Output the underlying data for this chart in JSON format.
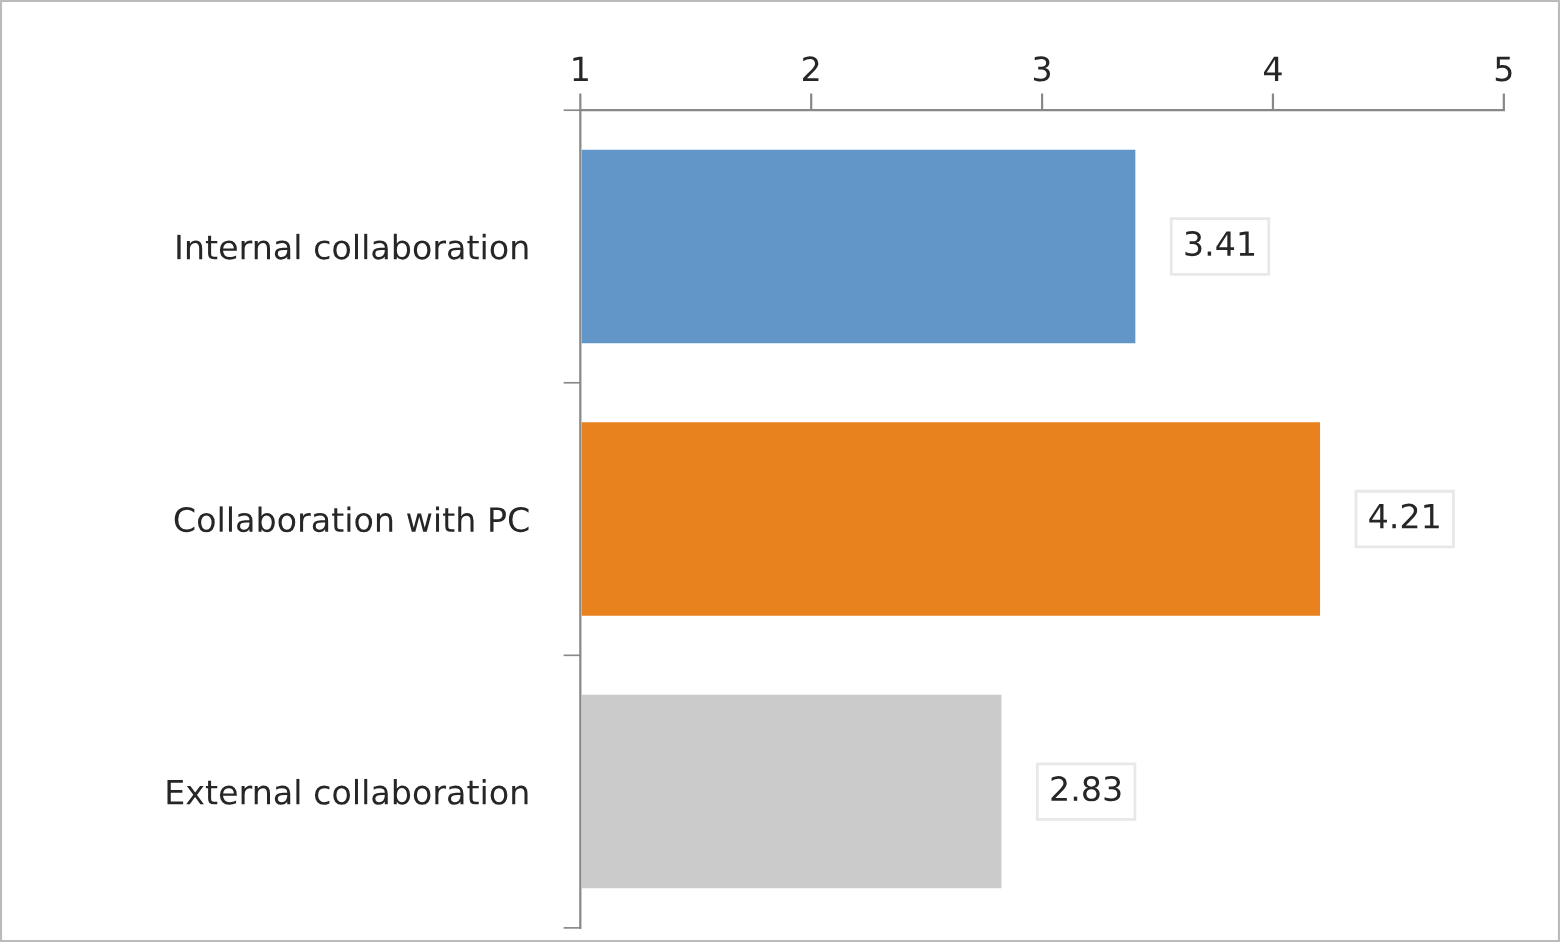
{
  "chart_data": {
    "type": "bar",
    "orientation": "horizontal",
    "categories": [
      "Internal collaboration",
      "Collaboration with PC",
      "External collaboration"
    ],
    "values": [
      3.41,
      4.21,
      2.83
    ],
    "colors": [
      "#6396c8",
      "#e8821e",
      "#cbcbcb"
    ],
    "xlim": [
      1,
      5
    ],
    "xticks": [
      1,
      2,
      3,
      4,
      5
    ],
    "data_labels": true,
    "grid": false,
    "legend": false
  }
}
